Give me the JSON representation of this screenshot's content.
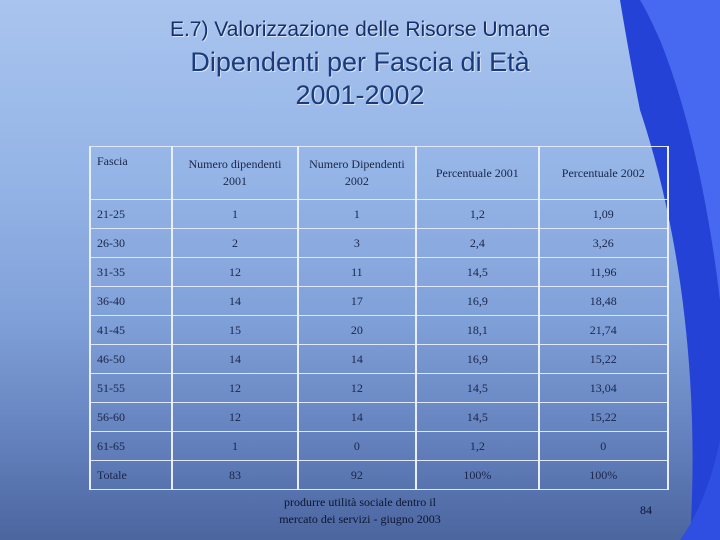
{
  "header": {
    "section_title": "E.7) Valorizzazione delle Risorse Umane",
    "main_title": "Dipendenti per Fascia di Età",
    "years": "2001-2002"
  },
  "table": {
    "headers": [
      "Fascia",
      "Numero dipendenti 2001",
      "Numero Dipendenti 2002",
      "Percentuale 2001",
      "Percentuale 2002"
    ],
    "rows": [
      [
        "21-25",
        "1",
        "1",
        "1,2",
        "1,09"
      ],
      [
        "26-30",
        "2",
        "3",
        "2,4",
        "3,26"
      ],
      [
        "31-35",
        "12",
        "11",
        "14,5",
        "11,96"
      ],
      [
        "36-40",
        "14",
        "17",
        "16,9",
        "18,48"
      ],
      [
        "41-45",
        "15",
        "20",
        "18,1",
        "21,74"
      ],
      [
        "46-50",
        "14",
        "14",
        "16,9",
        "15,22"
      ],
      [
        "51-55",
        "12",
        "12",
        "14,5",
        "13,04"
      ],
      [
        "56-60",
        "12",
        "14",
        "14,5",
        "15,22"
      ],
      [
        "61-65",
        "1",
        "0",
        "1,2",
        "0"
      ],
      [
        "Totale",
        "83",
        "92",
        "100%",
        "100%"
      ]
    ]
  },
  "footer": {
    "line1": "produrre utilità sociale dentro il",
    "line2": "mercato dei servizi - giugno 2003",
    "page_number": "84"
  },
  "colors": {
    "swoosh_dark": "#1f3fd0",
    "swoosh_light": "#4a6cf2",
    "title": "#1a3a7a"
  }
}
